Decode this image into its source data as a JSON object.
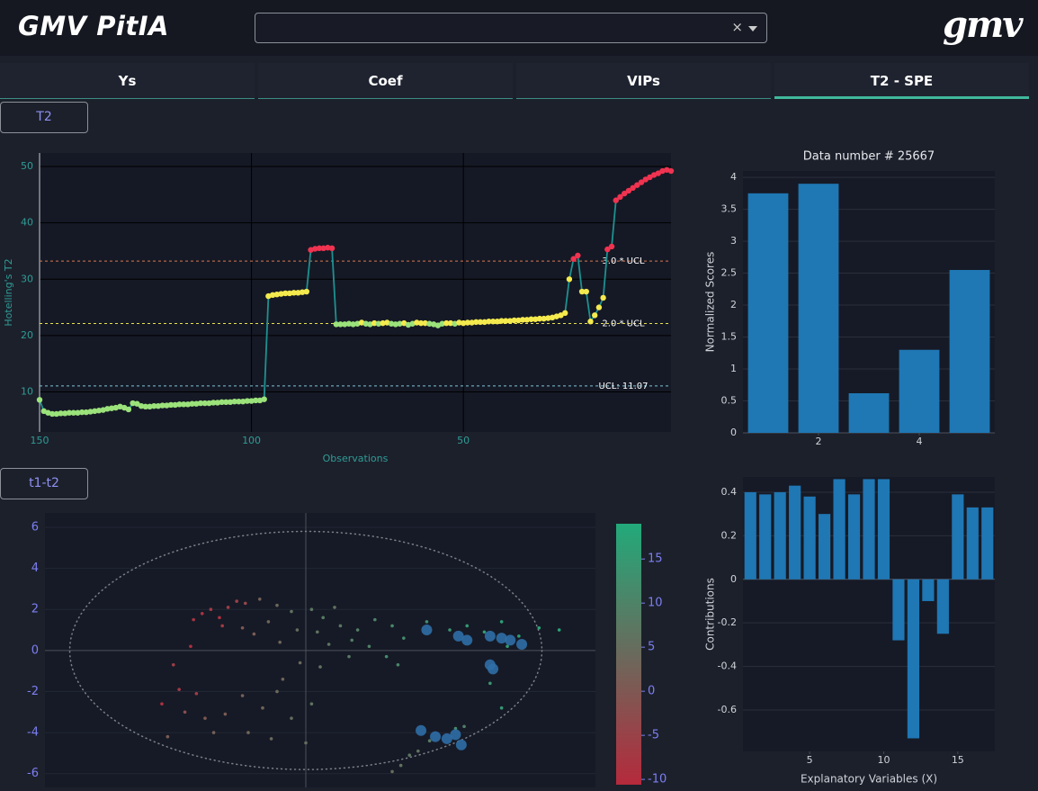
{
  "header": {
    "brand": "GMV PitIA",
    "logo": "gmv"
  },
  "tabs": [
    "Ys",
    "Coef",
    "VIPs",
    "T2 - SPE"
  ],
  "active_tab": 3,
  "buttons": [
    "T2",
    "t1-t2"
  ],
  "chart_data": [
    {
      "type": "line",
      "xlabel": "Observations",
      "ylabel": "Hotelling's T2",
      "xlim": [
        150,
        1
      ],
      "xticks": [
        150,
        100,
        50
      ],
      "ylim": [
        2.9,
        52.4
      ],
      "yticks": [
        10,
        20,
        30,
        40,
        50
      ],
      "grid": true,
      "xgrid": true,
      "line_color": "#1d9190",
      "point_colors": [
        "#9be27b",
        "#f4ea4e",
        "#ef3350"
      ],
      "reference_lines": [
        {
          "value": 11.07,
          "label": "UCL: 11.07",
          "color": "#7fc4d6"
        },
        {
          "value": 22.14,
          "label": "2.0 * UCL",
          "color": "#e8e04a"
        },
        {
          "value": 33.21,
          "label": "3.0 * UCL",
          "color": "#d9774f"
        }
      ],
      "x": [
        150,
        149,
        148,
        147,
        146,
        145,
        144,
        143,
        142,
        141,
        140,
        139,
        138,
        137,
        136,
        135,
        134,
        133,
        132,
        131,
        130,
        129,
        128,
        127,
        126,
        125,
        124,
        123,
        122,
        121,
        120,
        119,
        118,
        117,
        116,
        115,
        114,
        113,
        112,
        111,
        110,
        109,
        108,
        107,
        106,
        105,
        104,
        103,
        102,
        101,
        100,
        99,
        98,
        97,
        96,
        95,
        94,
        93,
        92,
        91,
        90,
        89,
        88,
        87,
        86,
        85,
        84,
        83,
        82,
        81,
        80,
        79,
        78,
        77,
        76,
        75,
        74,
        73,
        72,
        71,
        70,
        69,
        68,
        67,
        66,
        65,
        64,
        63,
        62,
        61,
        60,
        59,
        58,
        57,
        56,
        55,
        54,
        53,
        52,
        51,
        50,
        49,
        48,
        47,
        46,
        45,
        44,
        43,
        42,
        41,
        40,
        39,
        38,
        37,
        36,
        35,
        34,
        33,
        32,
        31,
        30,
        29,
        28,
        27,
        26,
        25,
        24,
        23,
        22,
        21,
        20,
        19,
        18,
        17,
        16,
        15,
        14,
        13,
        12,
        11,
        10,
        9,
        8,
        7,
        6,
        5,
        4,
        3,
        2,
        1
      ],
      "values": [
        8.6,
        6.6,
        6.3,
        6.1,
        6.1,
        6.2,
        6.2,
        6.3,
        6.3,
        6.3,
        6.4,
        6.4,
        6.5,
        6.6,
        6.7,
        6.8,
        7.0,
        7.1,
        7.2,
        7.4,
        7.2,
        6.9,
        8.0,
        7.9,
        7.5,
        7.4,
        7.4,
        7.5,
        7.5,
        7.6,
        7.6,
        7.7,
        7.7,
        7.8,
        7.8,
        7.8,
        7.9,
        7.9,
        8.0,
        8.0,
        8.0,
        8.1,
        8.1,
        8.2,
        8.2,
        8.2,
        8.3,
        8.3,
        8.3,
        8.4,
        8.4,
        8.5,
        8.5,
        8.7,
        27.0,
        27.2,
        27.3,
        27.4,
        27.5,
        27.5,
        27.6,
        27.6,
        27.7,
        27.8,
        35.2,
        35.4,
        35.5,
        35.5,
        35.6,
        35.5,
        22.0,
        22.0,
        22.0,
        22.1,
        22.0,
        22.1,
        22.3,
        22.1,
        22.0,
        22.2,
        22.1,
        22.2,
        22.3,
        22.1,
        22.0,
        22.1,
        22.2,
        21.9,
        22.1,
        22.3,
        22.2,
        22.2,
        22.1,
        22.0,
        21.8,
        22.1,
        22.2,
        22.2,
        22.1,
        22.3,
        22.2,
        22.3,
        22.3,
        22.4,
        22.4,
        22.4,
        22.5,
        22.5,
        22.5,
        22.6,
        22.6,
        22.6,
        22.7,
        22.7,
        22.8,
        22.8,
        22.9,
        22.9,
        23.0,
        23.0,
        23.1,
        23.2,
        23.4,
        23.6,
        24.0,
        30.0,
        33.6,
        34.2,
        27.8,
        27.8,
        22.5,
        23.6,
        25.0,
        26.7,
        35.3,
        35.8,
        44.0,
        44.6,
        45.2,
        45.7,
        46.2,
        46.7,
        47.2,
        47.7,
        48.1,
        48.5,
        48.8,
        49.2,
        49.4,
        49.2
      ]
    },
    {
      "type": "bar",
      "title": "Data number # 25667",
      "ylabel": "Normalized Scores",
      "x": [
        1,
        2,
        3,
        4,
        5
      ],
      "values": [
        3.75,
        3.9,
        0.62,
        1.3,
        2.55
      ],
      "color": "#1f77b4",
      "xlim": [
        0.5,
        5.5
      ],
      "xticks": [
        2,
        4
      ],
      "ylim": [
        0,
        4.1
      ],
      "yticks": [
        0,
        0.5,
        1,
        1.5,
        2,
        2.5,
        3,
        3.5,
        4
      ],
      "grid": true
    },
    {
      "type": "scatter",
      "xlim": [
        -9.06,
        10.06
      ],
      "ylim": [
        -6.67,
        6.7
      ],
      "yticks": [
        -6,
        -4,
        -2,
        0,
        2,
        4,
        6
      ],
      "grid": true,
      "zero_lines": true,
      "ellipse": {
        "rx": 8.2,
        "ry": 5.8
      },
      "colorscale": [
        [
          0,
          "#b52a3c"
        ],
        [
          0.5,
          "#6a6a5c"
        ],
        [
          1,
          "#22aa7a"
        ]
      ],
      "colorbar": {
        "lim": [
          -10.6,
          19
        ],
        "ticks": [
          -10,
          -5,
          0,
          5,
          10,
          15
        ]
      },
      "points": {
        "x": [
          -3.6,
          -3.3,
          -3.0,
          -2.7,
          -2.4,
          -2.1,
          -3.9,
          -2.9,
          -4.0,
          -5.0,
          -4.4,
          -3.8,
          -4.6,
          -1.6,
          -1.0,
          -0.5,
          0.2,
          0.6,
          1.0,
          -1.3,
          -0.3,
          0.4,
          1.2,
          1.8,
          -1.8,
          -0.9,
          0.8,
          1.6,
          -2.2,
          2.4,
          3.0,
          2.2,
          2.8,
          1.5,
          3.4,
          3.2,
          -0.2,
          0.5,
          -4.2,
          -3.5,
          -2.8,
          -2.2,
          -1.5,
          -1.0,
          -0.5,
          0.2,
          -2.0,
          -1.2,
          0.0,
          -4.8,
          -3.2,
          -0.8,
          4.2,
          5.0,
          5.6,
          6.2,
          6.8,
          7.4,
          8.1,
          8.8,
          7.0,
          6.4,
          6.8,
          5.2,
          3.3,
          3.6,
          3.0,
          4.3,
          5.5,
          3.9
        ],
        "y": [
          1.8,
          2.0,
          1.6,
          2.1,
          2.4,
          2.3,
          1.5,
          1.2,
          0.2,
          -2.6,
          -1.9,
          -2.1,
          -0.7,
          2.5,
          2.2,
          1.9,
          2.0,
          1.6,
          2.1,
          1.4,
          1.0,
          0.9,
          1.2,
          1.0,
          0.8,
          0.4,
          0.3,
          0.5,
          1.1,
          1.5,
          1.2,
          0.2,
          -0.3,
          -0.3,
          0.6,
          -0.7,
          -0.6,
          -0.8,
          -3.0,
          -3.3,
          -3.1,
          -2.2,
          -2.8,
          -2.0,
          -3.3,
          -2.6,
          -4.0,
          -4.3,
          -4.5,
          -4.2,
          -4.0,
          -1.4,
          1.4,
          1.0,
          1.2,
          0.9,
          1.4,
          0.7,
          1.1,
          1.0,
          0.2,
          -1.6,
          -2.8,
          -3.8,
          -5.6,
          -5.1,
          -5.9,
          -4.4,
          -3.7,
          -4.9
        ],
        "z": [
          -8,
          -7,
          -9,
          -6,
          -5,
          -4,
          -8,
          -7,
          -9,
          -9,
          -7,
          -6,
          -6,
          2,
          4,
          6,
          7,
          8,
          6,
          3,
          5,
          6,
          7,
          9,
          1,
          3,
          7,
          9,
          0,
          10,
          11,
          10,
          12,
          8,
          12,
          11,
          4,
          6,
          -2,
          0,
          1,
          2,
          3,
          4,
          5,
          6,
          3,
          4,
          5,
          1,
          2,
          3,
          13,
          14,
          15,
          16,
          17,
          17,
          18,
          18,
          16,
          14,
          15,
          12,
          6,
          7,
          5,
          8,
          9,
          6
        ]
      },
      "highlight": {
        "color": "#2f6ea6",
        "x": [
          4.2,
          5.3,
          5.6,
          6.4,
          6.8,
          7.1,
          7.5,
          6.4,
          6.5,
          4.0,
          4.5,
          4.9,
          5.2,
          5.4
        ],
        "y": [
          1.0,
          0.7,
          0.5,
          0.7,
          0.6,
          0.5,
          0.3,
          -0.7,
          -0.9,
          -3.9,
          -4.2,
          -4.3,
          -4.1,
          -4.6
        ]
      }
    },
    {
      "type": "bar",
      "xlabel": "Explanatory Variables (X)",
      "ylabel": "Contributions",
      "x": [
        1,
        2,
        3,
        4,
        5,
        6,
        7,
        8,
        9,
        10,
        11,
        12,
        13,
        14,
        15,
        16,
        17
      ],
      "values": [
        0.4,
        0.39,
        0.4,
        0.43,
        0.38,
        0.3,
        0.46,
        0.39,
        0.46,
        0.46,
        -0.28,
        -0.73,
        -0.1,
        -0.25,
        0.39,
        0.33,
        0.33
      ],
      "color": "#1f77b4",
      "xlim": [
        0.5,
        17.5
      ],
      "xticks": [
        5,
        10,
        15
      ],
      "ylim": [
        -0.79,
        0.47
      ],
      "yticks": [
        -0.6,
        -0.4,
        -0.2,
        0,
        0.2,
        0.4
      ],
      "grid": true
    }
  ]
}
